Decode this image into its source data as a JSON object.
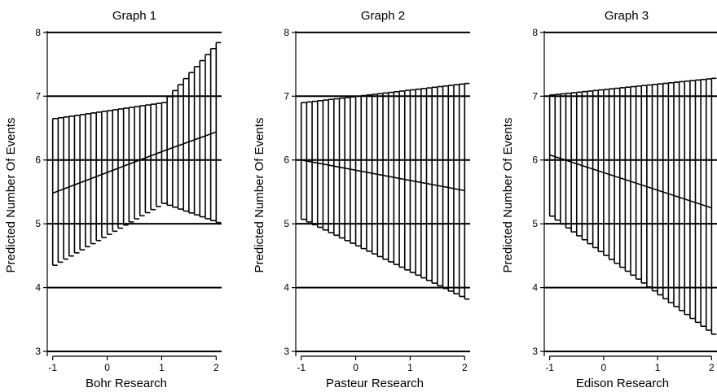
{
  "chart_data": [
    {
      "type": "line",
      "title": "Graph 1",
      "xlabel": "Bohr Research",
      "ylabel": "Predicted Number Of Events",
      "xlim": [
        -1.1,
        2.1
      ],
      "ylim": [
        2.95,
        8.1
      ],
      "xticks": [
        -1,
        0,
        1,
        2
      ],
      "yticks": [
        3,
        4,
        5,
        6,
        7,
        8
      ],
      "grid": true,
      "series": [
        {
          "x": [
            -1.0,
            1.0,
            2.0
          ],
          "y": [
            5.48,
            6.13,
            6.44
          ],
          "lower": [
            4.35,
            5.32,
            5.02
          ],
          "upper": [
            6.65,
            6.9,
            7.84
          ]
        }
      ]
    },
    {
      "type": "line",
      "title": "Graph 2",
      "xlabel": "Pasteur Research",
      "ylabel": "Predicted Number Of Events",
      "xlim": [
        -1.1,
        2.1
      ],
      "ylim": [
        2.95,
        8.1
      ],
      "xticks": [
        -1,
        0,
        1,
        2
      ],
      "yticks": [
        3,
        4,
        5,
        6,
        7,
        8
      ],
      "grid": true,
      "series": [
        {
          "x": [
            -1.0,
            2.0
          ],
          "y": [
            6.0,
            5.52
          ],
          "lower": [
            5.07,
            3.82
          ],
          "upper": [
            6.9,
            7.2
          ]
        }
      ]
    },
    {
      "type": "line",
      "title": "Graph 3",
      "xlabel": "Edison Research",
      "ylabel": "Predicted Number Of Events",
      "xlim": [
        -1.1,
        2.1
      ],
      "ylim": [
        2.95,
        8.1
      ],
      "xticks": [
        -1,
        0,
        1,
        2
      ],
      "yticks": [
        3,
        4,
        5,
        6,
        7,
        8
      ],
      "grid": true,
      "series": [
        {
          "x": [
            -1.0,
            2.0
          ],
          "y": [
            6.08,
            5.25
          ],
          "lower": [
            5.12,
            3.27
          ],
          "upper": [
            7.02,
            7.28
          ]
        }
      ]
    }
  ]
}
